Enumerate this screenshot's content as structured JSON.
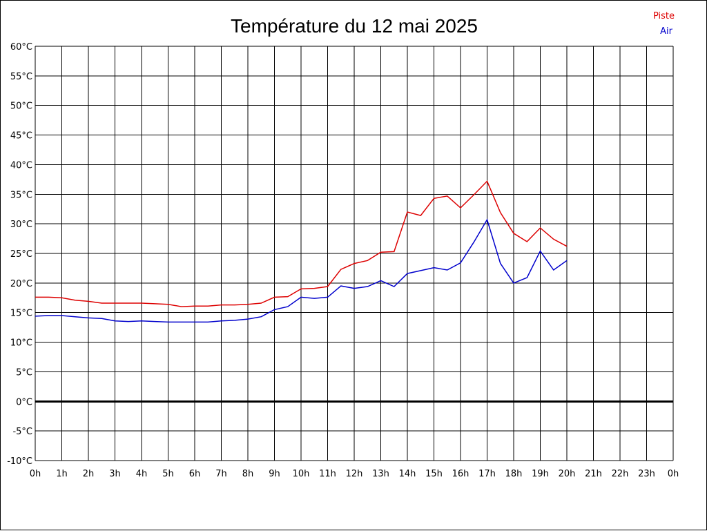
{
  "chart_data": {
    "type": "line",
    "title": "Température du 12 mai 2025",
    "x_tick_labels": [
      "0h",
      "1h",
      "2h",
      "3h",
      "4h",
      "5h",
      "6h",
      "7h",
      "8h",
      "9h",
      "10h",
      "11h",
      "12h",
      "13h",
      "14h",
      "15h",
      "16h",
      "17h",
      "18h",
      "19h",
      "20h",
      "21h",
      "22h",
      "23h",
      "0h"
    ],
    "y_tick_labels": [
      "60°C",
      "55°C",
      "50°C",
      "45°C",
      "40°C",
      "35°C",
      "30°C",
      "25°C",
      "20°C",
      "15°C",
      "10°C",
      "5°C",
      "0°C",
      "-5°C",
      "-10°C"
    ],
    "xlim": [
      0,
      24
    ],
    "ylim": [
      -10,
      60
    ],
    "grid": true,
    "legend_position": "top-right",
    "zero_line": true,
    "series": [
      {
        "name": "Piste",
        "color": "#dd0000",
        "x": [
          0,
          0.5,
          1,
          1.5,
          2,
          2.5,
          3,
          3.5,
          4,
          4.5,
          5,
          5.5,
          6,
          6.5,
          7,
          7.5,
          8,
          8.5,
          9,
          9.5,
          10,
          10.5,
          11,
          11.5,
          12,
          12.5,
          13,
          13.5,
          14,
          14.5,
          15,
          15.5,
          16,
          16.5,
          17,
          17.5,
          18,
          18.5,
          19,
          19.5,
          20
        ],
        "y": [
          17.6,
          17.6,
          17.5,
          17.1,
          16.9,
          16.6,
          16.6,
          16.6,
          16.6,
          16.5,
          16.4,
          16.0,
          16.1,
          16.1,
          16.3,
          16.3,
          16.4,
          16.6,
          17.6,
          17.7,
          19.0,
          19.1,
          19.4,
          22.3,
          23.3,
          23.8,
          25.2,
          25.3,
          32.0,
          31.4,
          34.3,
          34.7,
          32.7,
          34.9,
          37.2,
          31.9,
          28.4,
          27.0,
          29.3,
          27.4,
          26.2
        ]
      },
      {
        "name": "Air",
        "color": "#0000cc",
        "x": [
          0,
          0.5,
          1,
          1.5,
          2,
          2.5,
          3,
          3.5,
          4,
          4.5,
          5,
          5.5,
          6,
          6.5,
          7,
          7.5,
          8,
          8.5,
          9,
          9.5,
          10,
          10.5,
          11,
          11.5,
          12,
          12.5,
          13,
          13.5,
          14,
          14.5,
          15,
          15.5,
          16,
          16.5,
          17,
          17.5,
          18,
          18.5,
          19,
          19.5,
          20
        ],
        "y": [
          14.4,
          14.5,
          14.5,
          14.3,
          14.1,
          14.0,
          13.6,
          13.5,
          13.6,
          13.5,
          13.4,
          13.4,
          13.4,
          13.4,
          13.6,
          13.7,
          13.9,
          14.3,
          15.5,
          16.0,
          17.6,
          17.4,
          17.6,
          19.5,
          19.1,
          19.4,
          20.4,
          19.4,
          21.6,
          22.1,
          22.6,
          22.2,
          23.4,
          26.9,
          30.7,
          23.3,
          20.0,
          20.9,
          25.4,
          22.2,
          23.8
        ]
      }
    ]
  }
}
